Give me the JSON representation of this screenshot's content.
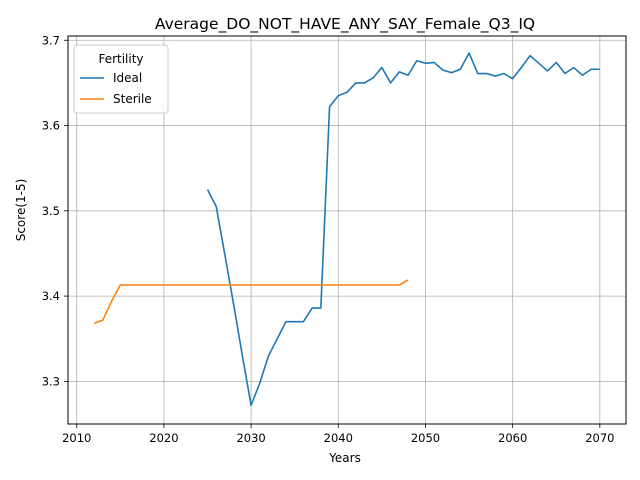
{
  "chart_data": {
    "type": "line",
    "title": "Average_DO_NOT_HAVE_ANY_SAY_Female_Q3_IQ",
    "xlabel": "Years",
    "ylabel": "Score(1-5)",
    "xlim": [
      2009,
      2073
    ],
    "ylim": [
      3.25,
      3.705
    ],
    "xticks": [
      2010,
      2020,
      2030,
      2040,
      2050,
      2060,
      2070
    ],
    "yticks": [
      3.3,
      3.4,
      3.5,
      3.6,
      3.7
    ],
    "xtick_labels": [
      "2010",
      "2020",
      "2030",
      "2040",
      "2050",
      "2060",
      "2070"
    ],
    "ytick_labels": [
      "3.3",
      "3.4",
      "3.5",
      "3.6",
      "3.7"
    ],
    "grid": true,
    "legend": {
      "title": "Fertility",
      "position": "top-left"
    },
    "series": [
      {
        "name": "Ideal",
        "color": "#1f77b4",
        "points": [
          [
            2025,
            3.525
          ],
          [
            2026,
            3.505
          ],
          [
            2027,
            3.448
          ],
          [
            2028,
            3.39
          ],
          [
            2029,
            3.33
          ],
          [
            2030,
            3.272
          ],
          [
            2031,
            3.298
          ],
          [
            2032,
            3.33
          ],
          [
            2033,
            3.35
          ],
          [
            2034,
            3.37
          ],
          [
            2035,
            3.37
          ],
          [
            2036,
            3.37
          ],
          [
            2037,
            3.386
          ],
          [
            2038,
            3.386
          ],
          [
            2039,
            3.622
          ],
          [
            2040,
            3.635
          ],
          [
            2041,
            3.639
          ],
          [
            2042,
            3.65
          ],
          [
            2043,
            3.65
          ],
          [
            2044,
            3.656
          ],
          [
            2045,
            3.668
          ],
          [
            2046,
            3.65
          ],
          [
            2047,
            3.663
          ],
          [
            2048,
            3.659
          ],
          [
            2049,
            3.676
          ],
          [
            2050,
            3.673
          ],
          [
            2051,
            3.674
          ],
          [
            2052,
            3.665
          ],
          [
            2053,
            3.662
          ],
          [
            2054,
            3.666
          ],
          [
            2055,
            3.685
          ],
          [
            2056,
            3.661
          ],
          [
            2057,
            3.661
          ],
          [
            2058,
            3.658
          ],
          [
            2059,
            3.661
          ],
          [
            2060,
            3.655
          ],
          [
            2061,
            3.668
          ],
          [
            2062,
            3.682
          ],
          [
            2063,
            3.673
          ],
          [
            2064,
            3.664
          ],
          [
            2065,
            3.674
          ],
          [
            2066,
            3.661
          ],
          [
            2067,
            3.668
          ],
          [
            2068,
            3.659
          ],
          [
            2069,
            3.666
          ],
          [
            2070,
            3.666
          ]
        ]
      },
      {
        "name": "Sterile",
        "color": "#ff7f0e",
        "points": [
          [
            2012,
            3.368
          ],
          [
            2013,
            3.372
          ],
          [
            2014,
            3.394
          ],
          [
            2015,
            3.413
          ],
          [
            2016,
            3.413
          ],
          [
            2020,
            3.413
          ],
          [
            2025,
            3.413
          ],
          [
            2030,
            3.413
          ],
          [
            2035,
            3.413
          ],
          [
            2040,
            3.413
          ],
          [
            2045,
            3.413
          ],
          [
            2047,
            3.413
          ],
          [
            2048,
            3.419
          ]
        ]
      }
    ]
  }
}
